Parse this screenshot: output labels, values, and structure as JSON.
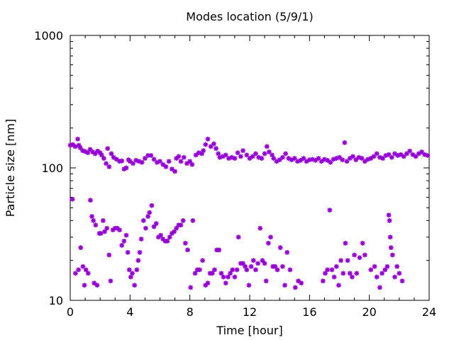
{
  "chart_data": {
    "type": "scatter",
    "title": "Modes location (5/9/1)",
    "xlabel": "Time [hour]",
    "ylabel": "Particle size [nm]",
    "xlim": [
      0,
      24
    ],
    "ylim": [
      10,
      1000
    ],
    "yscale": "log",
    "x_ticks": [
      0,
      4,
      8,
      12,
      16,
      20,
      24
    ],
    "x_tick_labels": [
      "0",
      "4",
      "8",
      "12",
      "16",
      "20",
      "24"
    ],
    "y_ticks": [
      10,
      100,
      1000
    ],
    "y_tick_labels": [
      "10",
      "100",
      "1000"
    ],
    "grid": false,
    "legend": "none",
    "marker_color": "#9400d3",
    "series": [
      {
        "points": [
          [
            0.0,
            148
          ],
          [
            0.17,
            150
          ],
          [
            0.33,
            145
          ],
          [
            0.5,
            165
          ],
          [
            0.58,
            148
          ],
          [
            0.67,
            142
          ],
          [
            0.83,
            135
          ],
          [
            1.0,
            133
          ],
          [
            1.17,
            130
          ],
          [
            1.33,
            138
          ],
          [
            1.5,
            132
          ],
          [
            1.67,
            128
          ],
          [
            1.83,
            134
          ],
          [
            2.0,
            130
          ],
          [
            2.1,
            125
          ],
          [
            2.25,
            118
          ],
          [
            2.4,
            108
          ],
          [
            2.5,
            140
          ],
          [
            2.6,
            102
          ],
          [
            2.75,
            128
          ],
          [
            2.9,
            120
          ],
          [
            3.1,
            116
          ],
          [
            3.3,
            112
          ],
          [
            3.45,
            113
          ],
          [
            3.6,
            98
          ],
          [
            3.75,
            100
          ],
          [
            3.9,
            115
          ],
          [
            4.0,
            112
          ],
          [
            4.2,
            108
          ],
          [
            4.4,
            114
          ],
          [
            4.6,
            112
          ],
          [
            4.8,
            110
          ],
          [
            5.0,
            118
          ],
          [
            5.2,
            124
          ],
          [
            5.4,
            124
          ],
          [
            5.6,
            116
          ],
          [
            5.8,
            110
          ],
          [
            6.0,
            112
          ],
          [
            6.2,
            106
          ],
          [
            6.4,
            102
          ],
          [
            6.6,
            112
          ],
          [
            6.8,
            98
          ],
          [
            7.0,
            94
          ],
          [
            7.1,
            118
          ],
          [
            7.25,
            122
          ],
          [
            7.4,
            112
          ],
          [
            7.6,
            120
          ],
          [
            7.8,
            108
          ],
          [
            8.0,
            112
          ],
          [
            8.15,
            106
          ],
          [
            8.4,
            125
          ],
          [
            8.6,
            130
          ],
          [
            8.8,
            128
          ],
          [
            8.9,
            135
          ],
          [
            9.05,
            150
          ],
          [
            9.2,
            165
          ],
          [
            9.4,
            145
          ],
          [
            9.6,
            152
          ],
          [
            9.75,
            140
          ],
          [
            9.9,
            128
          ],
          [
            10.0,
            120
          ],
          [
            10.2,
            122
          ],
          [
            10.4,
            125
          ],
          [
            10.6,
            118
          ],
          [
            10.8,
            120
          ],
          [
            11.0,
            118
          ],
          [
            11.2,
            130
          ],
          [
            11.4,
            122
          ],
          [
            11.55,
            135
          ],
          [
            11.8,
            125
          ],
          [
            12.0,
            118
          ],
          [
            12.2,
            122
          ],
          [
            12.4,
            128
          ],
          [
            12.6,
            120
          ],
          [
            12.8,
            118
          ],
          [
            13.0,
            128
          ],
          [
            13.15,
            145
          ],
          [
            13.3,
            132
          ],
          [
            13.5,
            125
          ],
          [
            13.6,
            118
          ],
          [
            13.8,
            112
          ],
          [
            14.0,
            115
          ],
          [
            14.2,
            120
          ],
          [
            14.4,
            128
          ],
          [
            14.6,
            118
          ],
          [
            14.8,
            115
          ],
          [
            15.0,
            118
          ],
          [
            15.2,
            112
          ],
          [
            15.4,
            114
          ],
          [
            15.6,
            118
          ],
          [
            15.8,
            112
          ],
          [
            16.0,
            115
          ],
          [
            16.2,
            116
          ],
          [
            16.4,
            114
          ],
          [
            16.6,
            118
          ],
          [
            16.8,
            112
          ],
          [
            17.0,
            116
          ],
          [
            17.2,
            114
          ],
          [
            17.4,
            110
          ],
          [
            17.6,
            116
          ],
          [
            17.8,
            118
          ],
          [
            18.0,
            120
          ],
          [
            18.2,
            115
          ],
          [
            18.35,
            155
          ],
          [
            18.5,
            112
          ],
          [
            18.7,
            118
          ],
          [
            18.9,
            122
          ],
          [
            19.1,
            115
          ],
          [
            19.3,
            120
          ],
          [
            19.5,
            118
          ],
          [
            19.7,
            112
          ],
          [
            19.9,
            116
          ],
          [
            20.1,
            118
          ],
          [
            20.3,
            122
          ],
          [
            20.5,
            128
          ],
          [
            20.7,
            120
          ],
          [
            20.9,
            118
          ],
          [
            21.1,
            124
          ],
          [
            21.3,
            126
          ],
          [
            21.5,
            120
          ],
          [
            21.7,
            128
          ],
          [
            21.9,
            124
          ],
          [
            22.1,
            126
          ],
          [
            22.3,
            122
          ],
          [
            22.5,
            128
          ],
          [
            22.7,
            134
          ],
          [
            22.9,
            126
          ],
          [
            23.1,
            122
          ],
          [
            23.3,
            128
          ],
          [
            23.5,
            132
          ],
          [
            23.7,
            126
          ],
          [
            23.9,
            124
          ]
        ]
      },
      {
        "points": [
          [
            0.15,
            58
          ],
          [
            0.35,
            16
          ],
          [
            0.55,
            17
          ],
          [
            0.7,
            25
          ],
          [
            0.85,
            18
          ],
          [
            0.95,
            13
          ],
          [
            1.05,
            17
          ],
          [
            1.2,
            16
          ],
          [
            1.35,
            57
          ],
          [
            1.45,
            43
          ],
          [
            1.55,
            40
          ],
          [
            1.6,
            13.5
          ],
          [
            1.7,
            37
          ],
          [
            1.8,
            13
          ],
          [
            1.95,
            32
          ],
          [
            2.05,
            32
          ],
          [
            2.2,
            40
          ],
          [
            2.3,
            33
          ],
          [
            2.45,
            35
          ],
          [
            2.6,
            22
          ],
          [
            2.7,
            14
          ],
          [
            2.85,
            34
          ],
          [
            3.0,
            35
          ],
          [
            3.15,
            35
          ],
          [
            3.3,
            34
          ],
          [
            3.45,
            26
          ],
          [
            3.6,
            28
          ],
          [
            3.75,
            31
          ],
          [
            3.85,
            23
          ],
          [
            3.95,
            17
          ],
          [
            4.05,
            15
          ],
          [
            4.15,
            16
          ],
          [
            4.3,
            13
          ],
          [
            4.45,
            17
          ],
          [
            4.55,
            20
          ],
          [
            4.65,
            23
          ],
          [
            4.75,
            29
          ],
          [
            4.9,
            40
          ],
          [
            5.05,
            35
          ],
          [
            5.2,
            43
          ],
          [
            5.3,
            46
          ],
          [
            5.45,
            52
          ],
          [
            5.6,
            36
          ],
          [
            5.75,
            38
          ],
          [
            5.9,
            30
          ],
          [
            6.05,
            31
          ],
          [
            6.2,
            29
          ],
          [
            6.35,
            28
          ],
          [
            6.5,
            28
          ],
          [
            6.65,
            30
          ],
          [
            6.8,
            32
          ],
          [
            6.95,
            33
          ],
          [
            7.1,
            35
          ],
          [
            7.25,
            37
          ],
          [
            7.4,
            37
          ],
          [
            7.55,
            40
          ],
          [
            7.7,
            27
          ],
          [
            7.85,
            24
          ],
          [
            8.05,
            12.5
          ],
          [
            8.2,
            40
          ],
          [
            8.35,
            16
          ],
          [
            8.5,
            17
          ],
          [
            8.65,
            17
          ],
          [
            8.85,
            20
          ],
          [
            9.05,
            13
          ],
          [
            9.2,
            13.5
          ],
          [
            9.35,
            16
          ],
          [
            9.5,
            16
          ],
          [
            9.65,
            17
          ],
          [
            9.8,
            24
          ],
          [
            9.95,
            24
          ],
          [
            10.1,
            16
          ],
          [
            10.25,
            15
          ],
          [
            10.4,
            13.5
          ],
          [
            10.55,
            15
          ],
          [
            10.7,
            16
          ],
          [
            10.85,
            17
          ],
          [
            11.0,
            15
          ],
          [
            11.15,
            17
          ],
          [
            11.25,
            30
          ],
          [
            11.4,
            19
          ],
          [
            11.55,
            19
          ],
          [
            11.7,
            18
          ],
          [
            11.8,
            17
          ],
          [
            11.95,
            13
          ],
          [
            12.1,
            18
          ],
          [
            12.25,
            20
          ],
          [
            12.4,
            17
          ],
          [
            12.55,
            19
          ],
          [
            12.7,
            35
          ],
          [
            12.85,
            20
          ],
          [
            13.0,
            19
          ],
          [
            13.1,
            14
          ],
          [
            13.25,
            27
          ],
          [
            13.4,
            30
          ],
          [
            13.55,
            18
          ],
          [
            13.7,
            18
          ],
          [
            13.85,
            17
          ],
          [
            14.05,
            25
          ],
          [
            14.2,
            18
          ],
          [
            14.35,
            13
          ],
          [
            14.5,
            23
          ],
          [
            14.7,
            17
          ],
          [
            15.05,
            12.5
          ],
          [
            15.25,
            14
          ],
          [
            15.45,
            13.5
          ],
          [
            16.9,
            14
          ],
          [
            17.05,
            16
          ],
          [
            17.2,
            17
          ],
          [
            17.35,
            48
          ],
          [
            17.5,
            17
          ],
          [
            17.65,
            15
          ],
          [
            17.8,
            18
          ],
          [
            17.95,
            13
          ],
          [
            18.1,
            20
          ],
          [
            18.25,
            16
          ],
          [
            18.4,
            27
          ],
          [
            18.55,
            20
          ],
          [
            18.7,
            16
          ],
          [
            18.85,
            15
          ],
          [
            19.0,
            22
          ],
          [
            19.15,
            16
          ],
          [
            19.35,
            21
          ],
          [
            19.55,
            27
          ],
          [
            19.7,
            22
          ],
          [
            20.1,
            17
          ],
          [
            20.35,
            18
          ],
          [
            20.5,
            15
          ],
          [
            20.7,
            12.5
          ],
          [
            20.85,
            16
          ],
          [
            21.05,
            17
          ],
          [
            21.2,
            18
          ],
          [
            21.3,
            44
          ],
          [
            21.35,
            40
          ],
          [
            21.4,
            30
          ],
          [
            21.45,
            25
          ],
          [
            21.55,
            22
          ],
          [
            21.7,
            15
          ],
          [
            21.85,
            18
          ],
          [
            22.0,
            16
          ],
          [
            22.2,
            14
          ]
        ]
      }
    ]
  }
}
